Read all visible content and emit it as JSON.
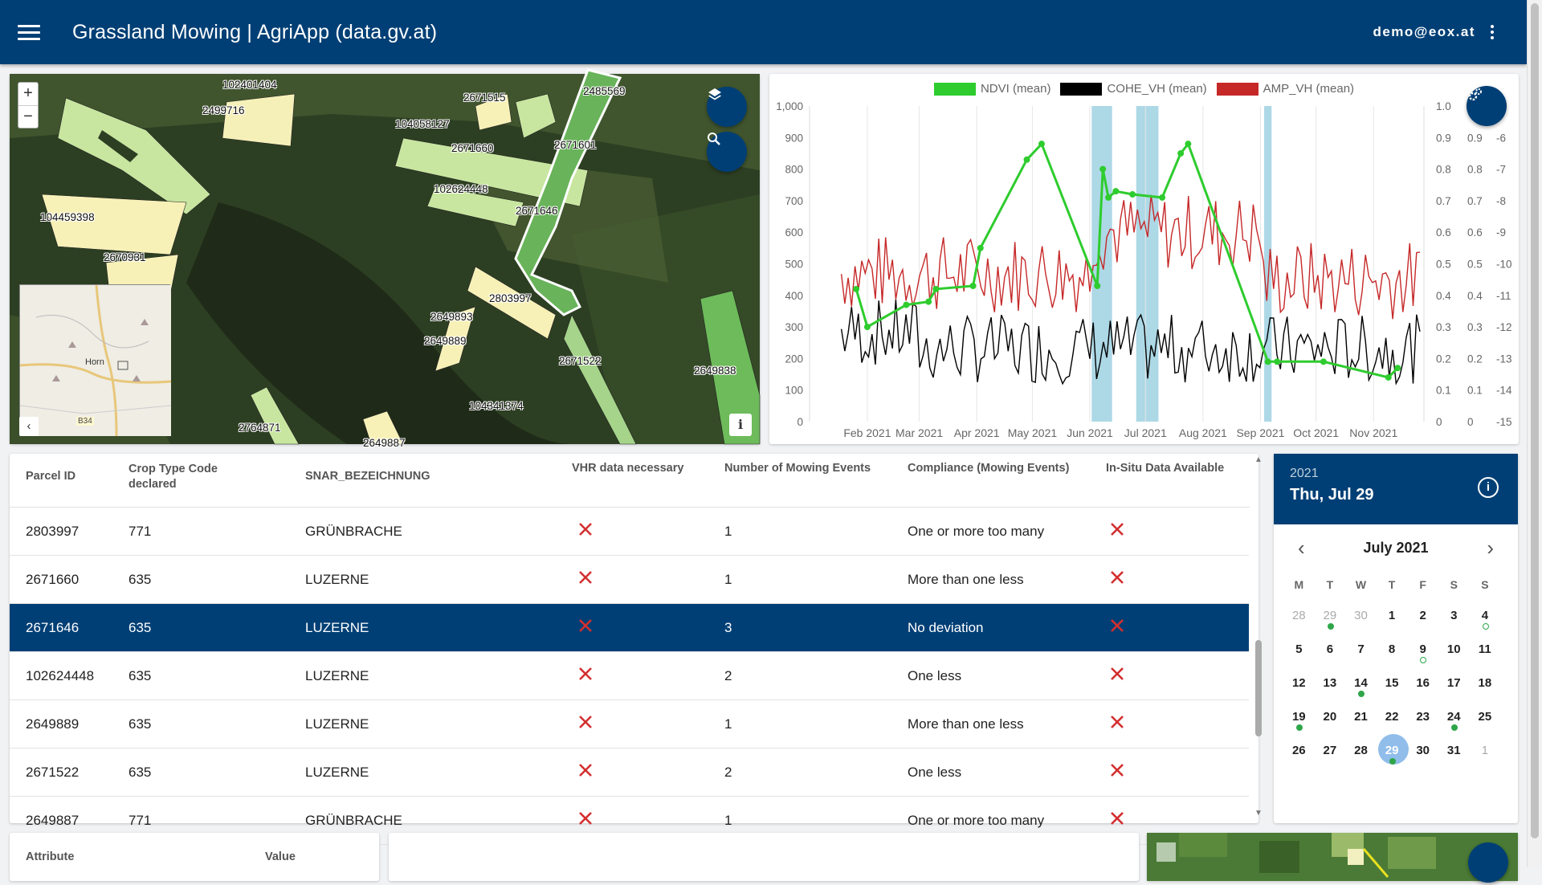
{
  "app": {
    "title": "Grassland Mowing | AgriApp (data.gv.at)",
    "user": "demo@eox.at"
  },
  "map": {
    "zoom_in": "+",
    "zoom_out": "−",
    "info": "i",
    "collapse": "‹",
    "minimap_town": "Horn",
    "minimap_road": "B34",
    "parcels": [
      "102401404",
      "2499716",
      "2671515",
      "2485569",
      "104058127",
      "2671660",
      "2671601",
      "102624448",
      "104459398",
      "2671646",
      "2670931",
      "2803997",
      "2649893",
      "2649889",
      "2671522",
      "2649838",
      "104341374",
      "2764871",
      "2649887"
    ]
  },
  "chart_data": {
    "type": "line",
    "legend": [
      "NDVI (mean)",
      "COHE_VH (mean)",
      "AMP_VH (mean)"
    ],
    "colors": {
      "NDVI": "#2ecc2e",
      "COHE_VH": "#000000",
      "AMP_VH": "#c62828",
      "band": "#add8e6"
    },
    "x_ticks": [
      "Feb 2021",
      "Mar 2021",
      "Apr 2021",
      "May 2021",
      "Jun 2021",
      "Jul 2021",
      "Aug 2021",
      "Sep 2021",
      "Oct 2021",
      "Nov 2021"
    ],
    "y_left_ticks": [
      "0",
      "100",
      "200",
      "300",
      "400",
      "500",
      "600",
      "700",
      "800",
      "900",
      "1,000"
    ],
    "y_right1_ticks": [
      "0",
      "0.1",
      "0.2",
      "0.3",
      "0.4",
      "0.5",
      "0.6",
      "0.7",
      "0.8",
      "0.9",
      "1.0"
    ],
    "y_right2_ticks": [
      "0",
      "0.1",
      "0.2",
      "0.3",
      "0.4",
      "0.5",
      "0.6",
      "0.7",
      "0.8",
      "0.9"
    ],
    "y_right3_ticks": [
      "-15",
      "-14",
      "-13",
      "-12",
      "-11",
      "-10",
      "-9",
      "-8",
      "-7",
      "-6"
    ],
    "ndvi_points": [
      {
        "date": "2021-01-26",
        "v": 0.42
      },
      {
        "date": "2021-02-01",
        "v": 0.3
      },
      {
        "date": "2021-02-22",
        "v": 0.37
      },
      {
        "date": "2021-03-06",
        "v": 0.38
      },
      {
        "date": "2021-03-10",
        "v": 0.42
      },
      {
        "date": "2021-03-30",
        "v": 0.43
      },
      {
        "date": "2021-04-03",
        "v": 0.55
      },
      {
        "date": "2021-04-28",
        "v": 0.83
      },
      {
        "date": "2021-05-06",
        "v": 0.88
      },
      {
        "date": "2021-06-05",
        "v": 0.43
      },
      {
        "date": "2021-06-08",
        "v": 0.8
      },
      {
        "date": "2021-06-11",
        "v": 0.71
      },
      {
        "date": "2021-06-15",
        "v": 0.73
      },
      {
        "date": "2021-06-24",
        "v": 0.72
      },
      {
        "date": "2021-07-10",
        "v": 0.71
      },
      {
        "date": "2021-07-20",
        "v": 0.85
      },
      {
        "date": "2021-07-24",
        "v": 0.88
      },
      {
        "date": "2021-09-05",
        "v": 0.19
      },
      {
        "date": "2021-09-10",
        "v": 0.19
      },
      {
        "date": "2021-10-05",
        "v": 0.19
      },
      {
        "date": "2021-11-09",
        "v": 0.14
      },
      {
        "date": "2021-11-14",
        "v": 0.17
      }
    ],
    "mowing_bands": [
      {
        "start": "2021-06-02",
        "end": "2021-06-13"
      },
      {
        "start": "2021-06-26",
        "end": "2021-07-08"
      },
      {
        "start": "2021-09-03",
        "end": "2021-09-07"
      }
    ]
  },
  "table": {
    "headers": [
      "Parcel ID",
      "Crop Type Code declared",
      "SNAR_BEZEICHNUNG",
      "VHR data necessary",
      "Number of Mowing Events",
      "Compliance (Mowing Events)",
      "In-Situ Data Available"
    ],
    "rows": [
      {
        "id": "2803997",
        "crop": "771",
        "snar": "GRÜNBRACHE",
        "events": "1",
        "compliance": "One or more too many"
      },
      {
        "id": "2671660",
        "crop": "635",
        "snar": "LUZERNE",
        "events": "1",
        "compliance": "More than one less"
      },
      {
        "id": "2671646",
        "crop": "635",
        "snar": "LUZERNE",
        "events": "3",
        "compliance": "No deviation"
      },
      {
        "id": "102624448",
        "crop": "635",
        "snar": "LUZERNE",
        "events": "2",
        "compliance": "One less"
      },
      {
        "id": "2649889",
        "crop": "635",
        "snar": "LUZERNE",
        "events": "1",
        "compliance": "More than one less"
      },
      {
        "id": "2671522",
        "crop": "635",
        "snar": "LUZERNE",
        "events": "2",
        "compliance": "One less"
      },
      {
        "id": "2649887",
        "crop": "771",
        "snar": "GRÜNBRACHE",
        "events": "1",
        "compliance": "One or more too many"
      }
    ],
    "selected_row": 2
  },
  "calendar": {
    "year": "2021",
    "date": "Thu, Jul 29",
    "month": "July 2021",
    "weekdays": [
      "M",
      "T",
      "W",
      "T",
      "F",
      "S",
      "S"
    ],
    "days": [
      {
        "d": "28",
        "muted": true
      },
      {
        "d": "29",
        "muted": true,
        "dot": "filled"
      },
      {
        "d": "30",
        "muted": true
      },
      {
        "d": "1"
      },
      {
        "d": "2"
      },
      {
        "d": "3"
      },
      {
        "d": "4",
        "dot": "hollow"
      },
      {
        "d": "5"
      },
      {
        "d": "6"
      },
      {
        "d": "7"
      },
      {
        "d": "8"
      },
      {
        "d": "9",
        "dot": "hollow"
      },
      {
        "d": "10"
      },
      {
        "d": "11"
      },
      {
        "d": "12"
      },
      {
        "d": "13"
      },
      {
        "d": "14",
        "dot": "filled"
      },
      {
        "d": "15"
      },
      {
        "d": "16"
      },
      {
        "d": "17"
      },
      {
        "d": "18"
      },
      {
        "d": "19",
        "dot": "filled"
      },
      {
        "d": "20"
      },
      {
        "d": "21"
      },
      {
        "d": "22"
      },
      {
        "d": "23"
      },
      {
        "d": "24",
        "dot": "filled"
      },
      {
        "d": "25"
      },
      {
        "d": "26"
      },
      {
        "d": "27"
      },
      {
        "d": "28"
      },
      {
        "d": "29",
        "selected": true,
        "dot": "filled"
      },
      {
        "d": "30"
      },
      {
        "d": "31"
      },
      {
        "d": "1",
        "muted": true
      }
    ]
  },
  "attributes": {
    "col_attr": "Attribute",
    "col_value": "Value"
  }
}
